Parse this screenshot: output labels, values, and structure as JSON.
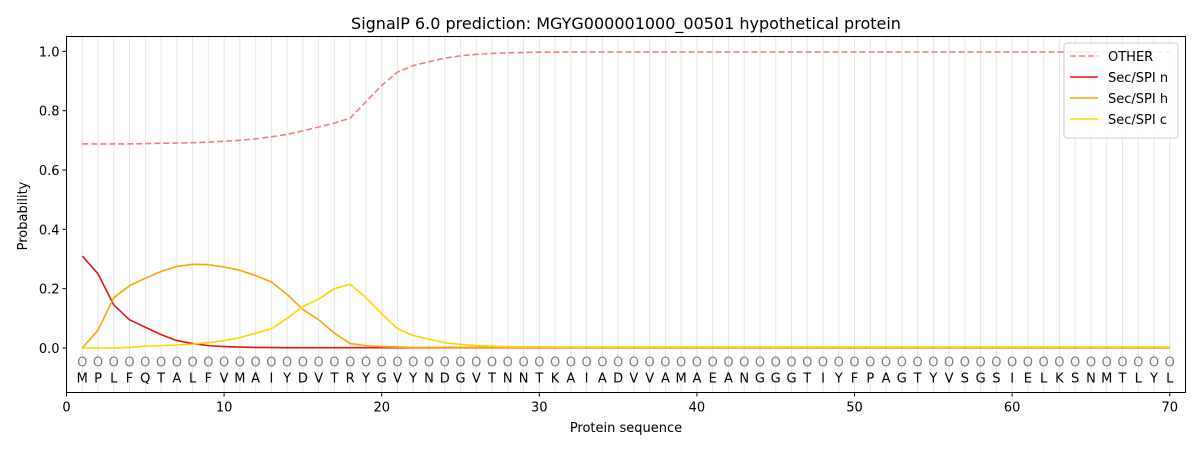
{
  "chart_data": {
    "type": "line",
    "title": "SignalP 6.0 prediction: MGYG000001000_00501 hypothetical protein",
    "xlabel": "Protein sequence",
    "ylabel": "Probability",
    "xlim": [
      0,
      71
    ],
    "ylim": [
      -0.15,
      1.05
    ],
    "xticks": [
      0,
      10,
      20,
      30,
      40,
      50,
      60,
      70
    ],
    "yticks": [
      0.0,
      0.2,
      0.4,
      0.6,
      0.8,
      1.0
    ],
    "ytick_labels": [
      "0.0",
      "0.2",
      "0.4",
      "0.6",
      "0.8",
      "1.0"
    ],
    "legend_position": "top-right",
    "grid": "vertical lines at every residue",
    "sequence": [
      "M",
      "P",
      "L",
      "F",
      "Q",
      "T",
      "A",
      "L",
      "F",
      "V",
      "M",
      "A",
      "I",
      "Y",
      "D",
      "V",
      "T",
      "R",
      "Y",
      "G",
      "V",
      "Y",
      "N",
      "D",
      "G",
      "V",
      "T",
      "N",
      "N",
      "T",
      "K",
      "A",
      "I",
      "A",
      "D",
      "V",
      "V",
      "A",
      "M",
      "A",
      "E",
      "A",
      "N",
      "G",
      "G",
      "G",
      "T",
      "I",
      "Y",
      "F",
      "P",
      "A",
      "G",
      "T",
      "Y",
      "V",
      "S",
      "G",
      "S",
      "I",
      "E",
      "L",
      "K",
      "S",
      "N",
      "M",
      "T",
      "L",
      "Y",
      "L"
    ],
    "annotation_label": "O",
    "annotation_y": -0.045,
    "residue_y": -0.1,
    "series": [
      {
        "name": "OTHER",
        "color": "#f08080",
        "dashed": true,
        "values": [
          0.688,
          0.688,
          0.688,
          0.688,
          0.689,
          0.69,
          0.691,
          0.692,
          0.694,
          0.697,
          0.7,
          0.705,
          0.712,
          0.72,
          0.732,
          0.745,
          0.758,
          0.775,
          0.83,
          0.885,
          0.93,
          0.952,
          0.965,
          0.977,
          0.985,
          0.99,
          0.993,
          0.995,
          0.996,
          0.997,
          0.997,
          0.998,
          0.998,
          0.998,
          0.998,
          0.998,
          0.998,
          0.998,
          0.998,
          0.998,
          0.998,
          0.998,
          0.998,
          0.998,
          0.998,
          0.998,
          0.998,
          0.998,
          0.998,
          0.998,
          0.998,
          0.998,
          0.998,
          0.998,
          0.998,
          0.998,
          0.998,
          0.998,
          0.998,
          0.998,
          0.998,
          0.998,
          0.998,
          0.998,
          0.998,
          0.998,
          0.998,
          0.998,
          0.998,
          0.998
        ]
      },
      {
        "name": "Sec/SPI n",
        "color": "#e8160c",
        "dashed": false,
        "values": [
          0.31,
          0.25,
          0.145,
          0.095,
          0.07,
          0.045,
          0.025,
          0.015,
          0.008,
          0.005,
          0.003,
          0.002,
          0.0015,
          0.001,
          0.001,
          0.001,
          0.001,
          0.001,
          0.001,
          0.001,
          0.001,
          0.001,
          0.001,
          0.001,
          0.001,
          0.001,
          0.001,
          0.001,
          0.001,
          0.001,
          0.001,
          0.001,
          0.001,
          0.001,
          0.001,
          0.001,
          0.001,
          0.001,
          0.001,
          0.001,
          0.001,
          0.001,
          0.001,
          0.001,
          0.001,
          0.001,
          0.001,
          0.001,
          0.001,
          0.001,
          0.001,
          0.001,
          0.001,
          0.001,
          0.001,
          0.001,
          0.001,
          0.001,
          0.001,
          0.001,
          0.001,
          0.001,
          0.001,
          0.001,
          0.001,
          0.001,
          0.001,
          0.001,
          0.001,
          0.001
        ]
      },
      {
        "name": "Sec/SPI h",
        "color": "#ffa500",
        "dashed": false,
        "values": [
          0.0,
          0.06,
          0.17,
          0.21,
          0.235,
          0.258,
          0.275,
          0.282,
          0.281,
          0.273,
          0.262,
          0.244,
          0.223,
          0.18,
          0.13,
          0.095,
          0.05,
          0.015,
          0.008,
          0.005,
          0.003,
          0.002,
          0.002,
          0.002,
          0.002,
          0.002,
          0.002,
          0.002,
          0.002,
          0.002,
          0.002,
          0.002,
          0.002,
          0.002,
          0.002,
          0.002,
          0.002,
          0.002,
          0.002,
          0.002,
          0.002,
          0.002,
          0.002,
          0.002,
          0.002,
          0.002,
          0.002,
          0.002,
          0.002,
          0.002,
          0.002,
          0.002,
          0.002,
          0.002,
          0.002,
          0.002,
          0.002,
          0.002,
          0.002,
          0.002,
          0.002,
          0.002,
          0.002,
          0.002,
          0.002,
          0.002,
          0.002,
          0.002,
          0.002,
          0.002
        ]
      },
      {
        "name": "Sec/SPI c",
        "color": "#ffd700",
        "dashed": false,
        "values": [
          0.0,
          0.0,
          0.0,
          0.002,
          0.006,
          0.008,
          0.01,
          0.013,
          0.018,
          0.025,
          0.035,
          0.05,
          0.065,
          0.1,
          0.14,
          0.165,
          0.2,
          0.215,
          0.17,
          0.115,
          0.065,
          0.042,
          0.03,
          0.018,
          0.012,
          0.008,
          0.006,
          0.005,
          0.004,
          0.004,
          0.003,
          0.003,
          0.003,
          0.003,
          0.003,
          0.003,
          0.003,
          0.003,
          0.003,
          0.003,
          0.003,
          0.003,
          0.003,
          0.003,
          0.003,
          0.003,
          0.003,
          0.003,
          0.003,
          0.003,
          0.003,
          0.003,
          0.003,
          0.003,
          0.003,
          0.003,
          0.003,
          0.003,
          0.003,
          0.003,
          0.003,
          0.003,
          0.003,
          0.003,
          0.003,
          0.003,
          0.003,
          0.003,
          0.003,
          0.003
        ]
      }
    ]
  }
}
